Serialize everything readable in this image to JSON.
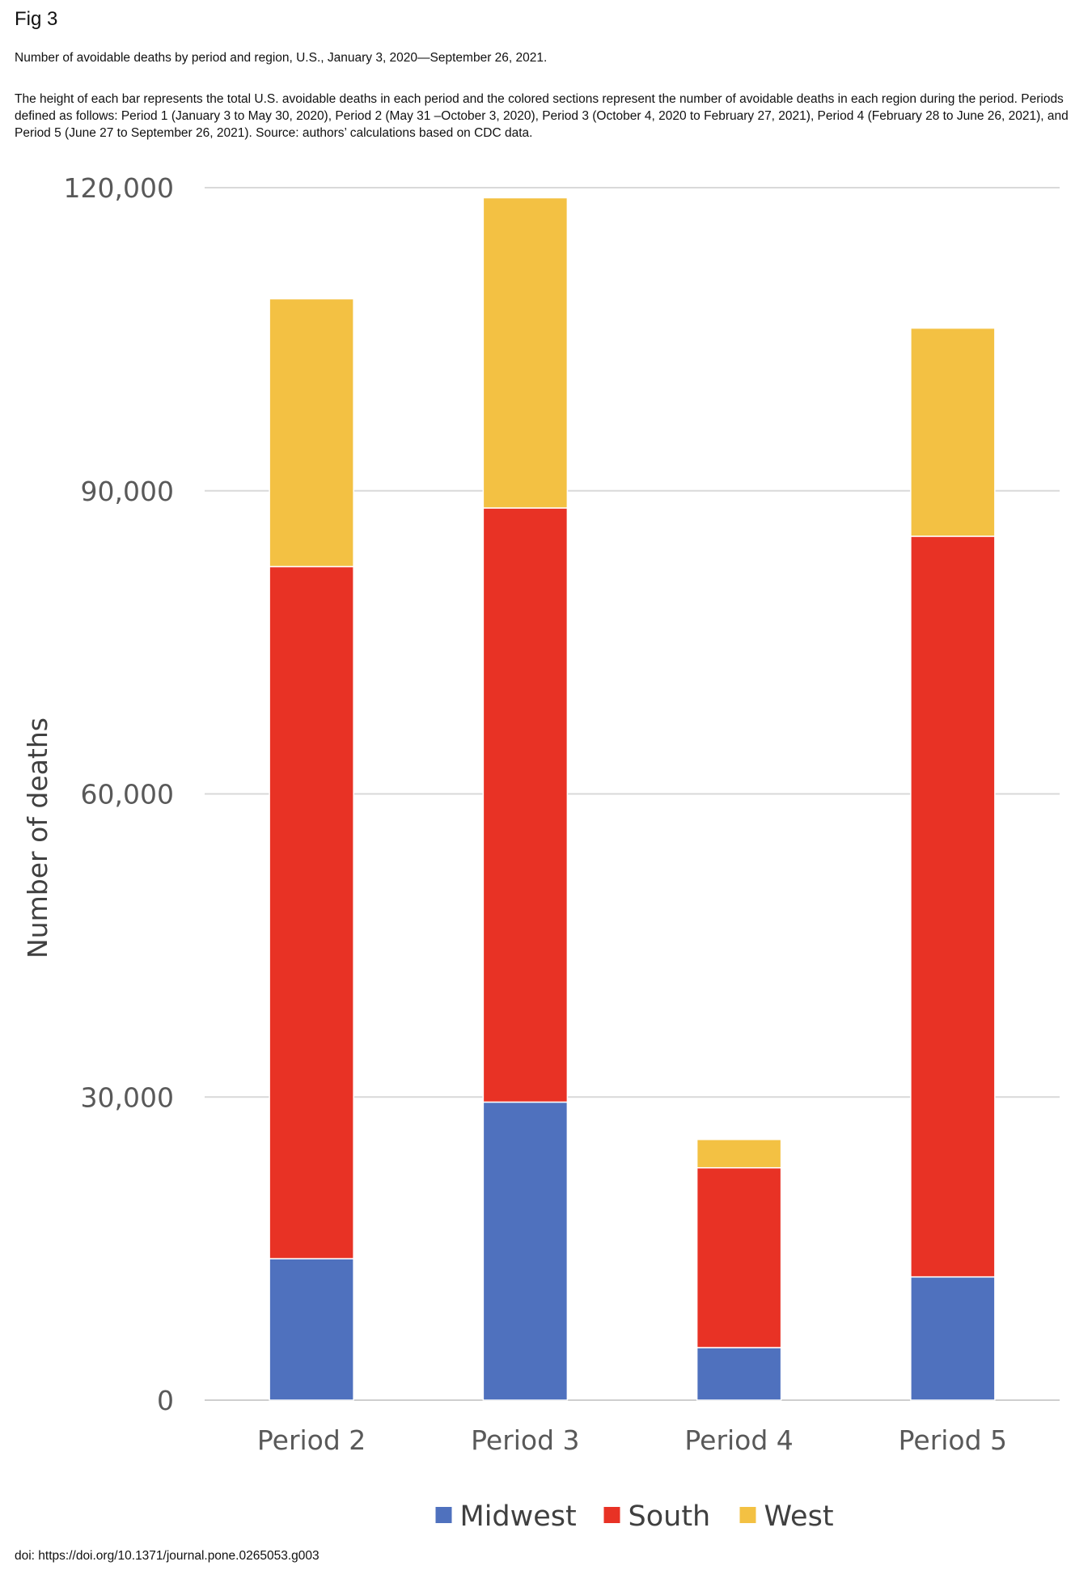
{
  "figure": {
    "label": "Fig 3",
    "title": "Number of avoidable deaths by period and region, U.S., January 3, 2020—September 26, 2021.",
    "caption": "The height of each bar represents the total U.S. avoidable deaths in each period and the colored sections represent the number of avoidable deaths in each region during the period. Periods defined as follows: Period 1 (January 3 to May 30, 2020), Period 2 (May 31 –October 3, 2020), Period 3 (October 4, 2020 to February 27, 2021), Period 4 (February 28 to June 26, 2021), and Period 5 (June 27 to September 26, 2021). Source: authors’ calculations based on CDC data.",
    "doi": "doi: https://doi.org/10.1371/journal.pone.0265053.g003"
  },
  "chart_data": {
    "type": "bar",
    "stacked": true,
    "categories": [
      "Period 2",
      "Period 3",
      "Period 4",
      "Period 5"
    ],
    "series": [
      {
        "name": "Midwest",
        "color": "#4f71be",
        "values": [
          14000,
          29500,
          5200,
          12200
        ]
      },
      {
        "name": "South",
        "color": "#e83225",
        "values": [
          68500,
          58800,
          17800,
          73300
        ]
      },
      {
        "name": "West",
        "color": "#f3c143",
        "values": [
          26500,
          30700,
          2800,
          20600
        ]
      }
    ],
    "ylabel": "Number of deaths",
    "xlabel": "",
    "ylim": [
      0,
      120000
    ],
    "yticks": [
      0,
      30000,
      60000,
      90000,
      120000
    ],
    "ytick_labels": [
      "0",
      "30,000",
      "60,000",
      "90,000",
      "120,000"
    ],
    "grid": true,
    "legend": "bottom-center"
  }
}
